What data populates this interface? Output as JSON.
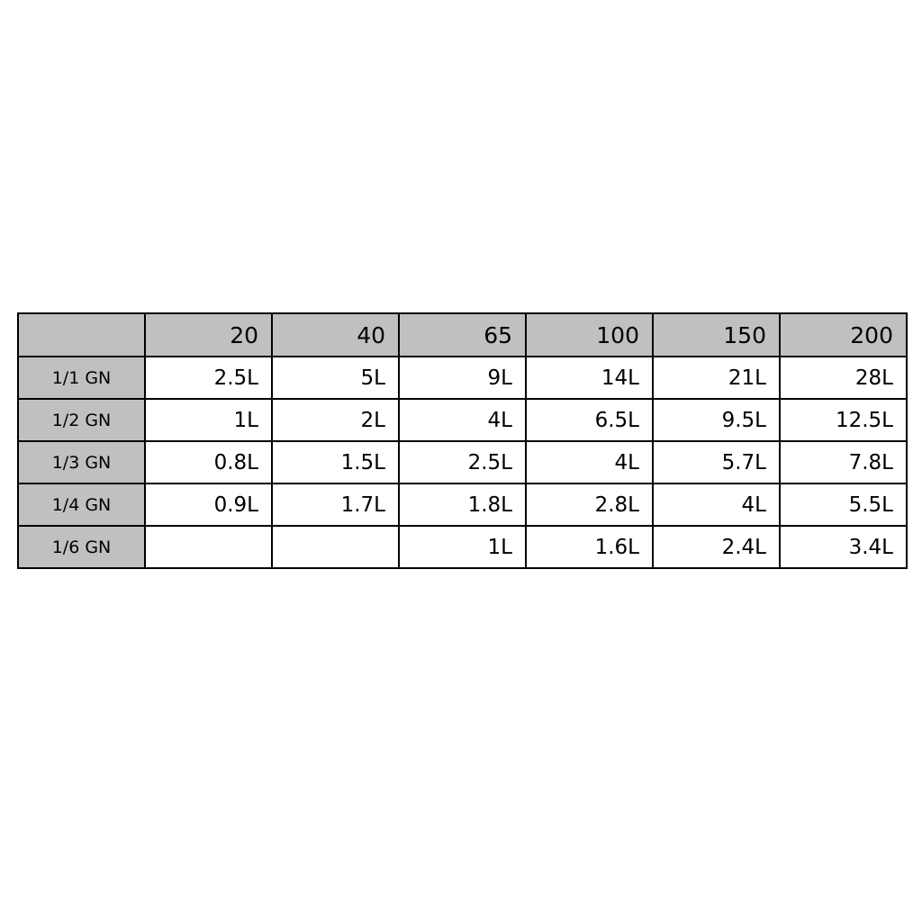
{
  "table": {
    "corner": "",
    "columns": [
      "20",
      "40",
      "65",
      "100",
      "150",
      "200"
    ],
    "rows": [
      {
        "label": "1/1 GN",
        "cells": [
          "2.5L",
          "5L",
          "9L",
          "14L",
          "21L",
          "28L"
        ]
      },
      {
        "label": "1/2 GN",
        "cells": [
          "1L",
          "2L",
          "4L",
          "6.5L",
          "9.5L",
          "12.5L"
        ]
      },
      {
        "label": "1/3 GN",
        "cells": [
          "0.8L",
          "1.5L",
          "2.5L",
          "4L",
          "5.7L",
          "7.8L"
        ]
      },
      {
        "label": "1/4 GN",
        "cells": [
          "0.9L",
          "1.7L",
          "1.8L",
          "2.8L",
          "4L",
          "5.5L"
        ]
      },
      {
        "label": "1/6 GN",
        "cells": [
          "",
          "",
          "1L",
          "1.6L",
          "2.4L",
          "3.4L"
        ]
      }
    ]
  },
  "colors": {
    "header_bg": "#c0c0c0",
    "border": "#000000"
  }
}
